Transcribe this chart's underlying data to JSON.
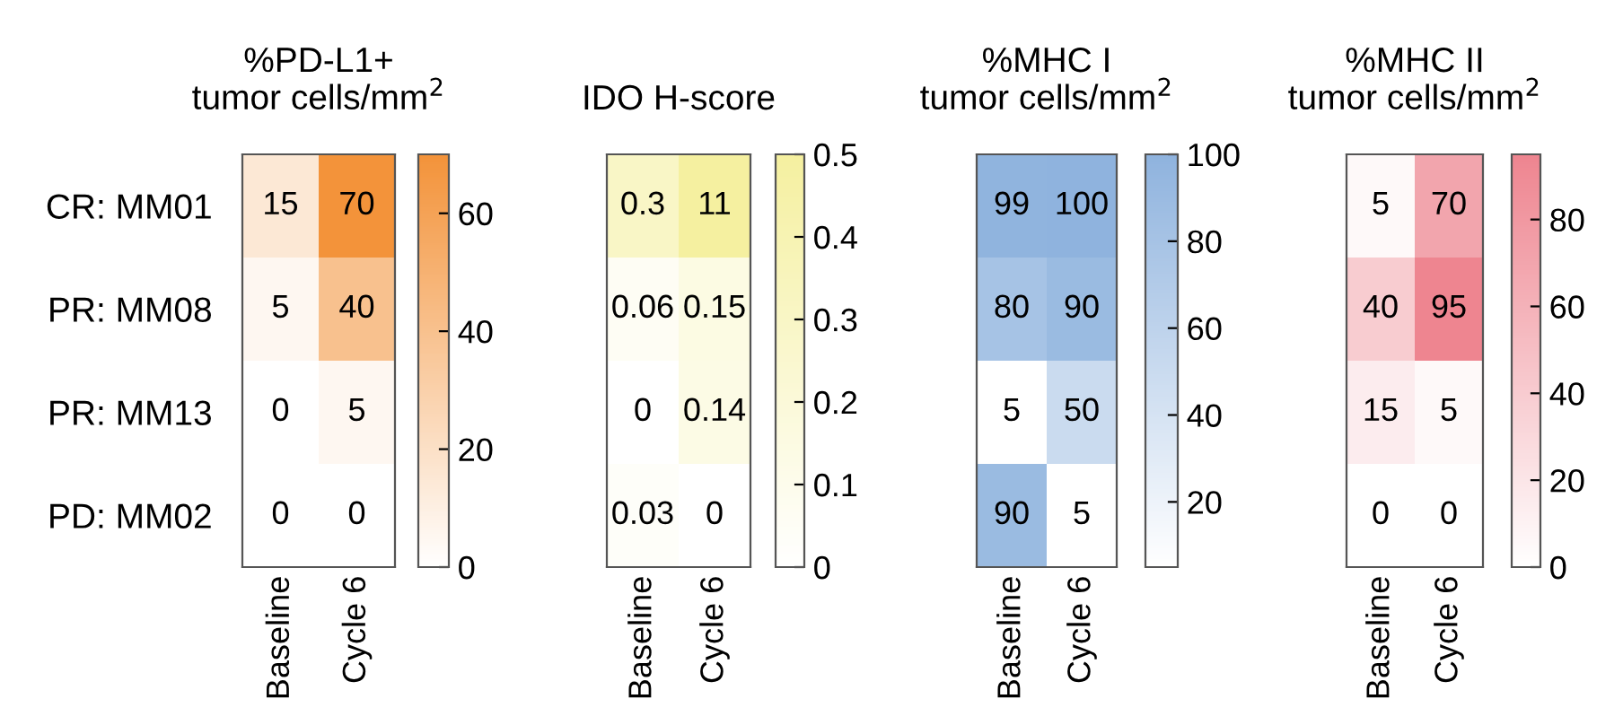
{
  "chart_data": [
    {
      "type": "heatmap",
      "title": "%PD-L1+\ntumor cells/mm$^{2}$",
      "categories": [
        "Baseline",
        "Cycle 6"
      ],
      "y_categories": [
        "CR: MM01",
        "PR: MM08",
        "PR: MM13",
        "PD: MM02"
      ],
      "cells": [
        [
          15,
          70
        ],
        [
          5,
          40
        ],
        [
          0,
          5
        ],
        [
          0,
          0
        ]
      ],
      "clim": [
        0,
        70
      ],
      "cticks": [
        0,
        20,
        40,
        60
      ],
      "colors": [
        "#ffffff",
        "#f3933a"
      ],
      "data_labels": true
    },
    {
      "type": "heatmap",
      "title": "IDO H-score",
      "categories": [
        "Baseline",
        "Cycle 6"
      ],
      "y_categories": [
        null,
        null,
        null,
        null
      ],
      "tick_labels": "x",
      "cells": [
        [
          0.3,
          11
        ],
        [
          0.06,
          0.15
        ],
        [
          0,
          0.14
        ],
        [
          0.03,
          0
        ]
      ],
      "clim": [
        0,
        0.5
      ],
      "cticks": [
        0,
        0.1,
        0.2,
        0.3,
        0.4,
        0.5
      ],
      "colors": [
        "#ffffff",
        "#f5f0a0"
      ],
      "data_labels": true
    },
    {
      "type": "heatmap",
      "title": "%MHC I\ntumor cells/mm$^{2}$",
      "categories": [
        "Baseline",
        "Cycle 6"
      ],
      "y_categories": [
        null,
        null,
        null,
        null
      ],
      "tick_labels": "x",
      "cells": [
        [
          99,
          100
        ],
        [
          80,
          90
        ],
        [
          5,
          50
        ],
        [
          90,
          5
        ]
      ],
      "clim": [
        5,
        100
      ],
      "cticks": [
        20,
        40,
        60,
        80,
        100
      ],
      "colors": [
        "#ffffff",
        "#8fb3de"
      ],
      "data_labels": true
    },
    {
      "type": "heatmap",
      "title": "%MHC II\ntumor cells/mm$^{2}$",
      "categories": [
        "Baseline",
        "Cycle 6"
      ],
      "y_categories": [
        null,
        null,
        null,
        null
      ],
      "tick_labels": "x",
      "cells": [
        [
          5,
          70
        ],
        [
          40,
          95
        ],
        [
          15,
          5
        ],
        [
          0,
          0
        ]
      ],
      "clim": [
        0,
        95
      ],
      "cticks": [
        0,
        20,
        40,
        60,
        80
      ],
      "colors": [
        "#ffffff",
        "#ee8590"
      ],
      "data_labels": true
    }
  ]
}
